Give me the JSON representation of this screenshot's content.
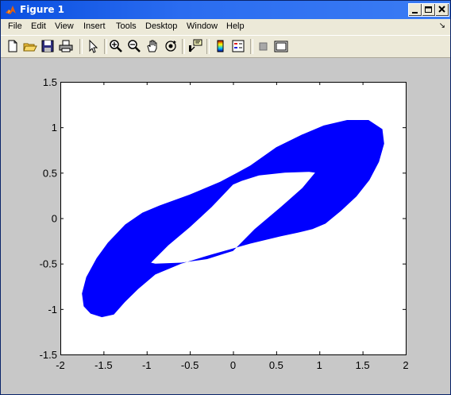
{
  "window": {
    "title": "Figure 1"
  },
  "menubar": {
    "items": [
      "File",
      "Edit",
      "View",
      "Insert",
      "Tools",
      "Desktop",
      "Window",
      "Help"
    ],
    "arrow_glyph": "↘"
  },
  "toolbar": {
    "icons": [
      "new-figure-icon",
      "open-file-icon",
      "save-icon",
      "print-icon",
      "edit-plot-arrow-icon",
      "zoom-in-icon",
      "zoom-out-icon",
      "pan-hand-icon",
      "rotate-3d-icon",
      "data-cursor-icon",
      "insert-colorbar-icon",
      "insert-legend-icon",
      "hide-plot-tools-icon",
      "show-plot-tools-icon"
    ]
  },
  "colors": {
    "series": "#0000ff",
    "figure_bg": "#c8c8c8",
    "axes_bg": "#ffffff"
  },
  "chart_data": {
    "type": "area",
    "title": "",
    "xlabel": "",
    "ylabel": "",
    "xlim": [
      -2,
      2
    ],
    "ylim": [
      -1.5,
      1.5
    ],
    "xticks": [
      "-2",
      "-1.5",
      "-1",
      "-0.5",
      "0",
      "0.5",
      "1",
      "1.5",
      "2"
    ],
    "yticks": [
      "1.5",
      "1",
      "0.5",
      "0",
      "-0.5",
      "-1",
      "-1.5"
    ],
    "grid": false,
    "legend": "none",
    "series": [
      {
        "outer_boundary": [
          [
            1.57,
            1.08
          ],
          [
            1.73,
            0.98
          ],
          [
            1.75,
            0.82
          ],
          [
            1.69,
            0.62
          ],
          [
            1.58,
            0.42
          ],
          [
            1.43,
            0.24
          ],
          [
            1.25,
            0.08
          ],
          [
            1.07,
            -0.06
          ],
          [
            0.92,
            -0.12
          ],
          [
            0.75,
            -0.16
          ],
          [
            0.55,
            -0.2
          ],
          [
            0.2,
            -0.28
          ],
          [
            -0.25,
            -0.4
          ],
          [
            -0.6,
            -0.5
          ],
          [
            -0.9,
            -0.62
          ],
          [
            -1.1,
            -0.78
          ],
          [
            -1.25,
            -0.92
          ],
          [
            -1.38,
            -1.06
          ],
          [
            -1.52,
            -1.09
          ],
          [
            -1.65,
            -1.05
          ],
          [
            -1.73,
            -0.97
          ],
          [
            -1.75,
            -0.83
          ],
          [
            -1.7,
            -0.65
          ],
          [
            -1.58,
            -0.44
          ],
          [
            -1.45,
            -0.27
          ],
          [
            -1.25,
            -0.07
          ],
          [
            -1.05,
            0.06
          ],
          [
            -0.85,
            0.14
          ],
          [
            -0.5,
            0.26
          ],
          [
            -0.15,
            0.4
          ],
          [
            0.05,
            0.5
          ],
          [
            0.2,
            0.58
          ],
          [
            0.5,
            0.78
          ],
          [
            0.8,
            0.92
          ],
          [
            1.05,
            1.02
          ],
          [
            1.32,
            1.08
          ]
        ],
        "inner_boundary": [
          [
            0.0,
            0.37
          ],
          [
            0.1,
            0.41
          ],
          [
            0.3,
            0.47
          ],
          [
            0.6,
            0.5
          ],
          [
            0.88,
            0.51
          ],
          [
            0.95,
            0.5
          ],
          [
            0.8,
            0.33
          ],
          [
            0.55,
            0.12
          ],
          [
            0.25,
            -0.12
          ],
          [
            0.0,
            -0.36
          ],
          [
            -0.1,
            -0.39
          ],
          [
            -0.3,
            -0.45
          ],
          [
            -0.6,
            -0.49
          ],
          [
            -0.9,
            -0.5
          ],
          [
            -0.95,
            -0.49
          ],
          [
            -0.75,
            -0.3
          ],
          [
            -0.5,
            -0.1
          ],
          [
            -0.25,
            0.12
          ]
        ]
      }
    ]
  }
}
